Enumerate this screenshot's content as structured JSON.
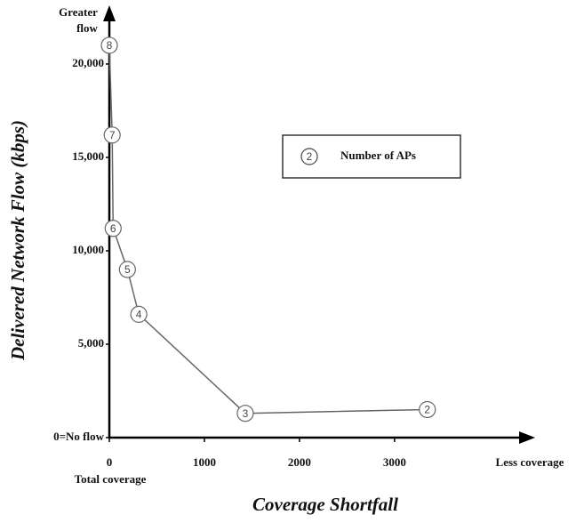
{
  "chart_data": {
    "type": "line",
    "x_title": "Coverage Shortfall",
    "y_title": "Delivered Network Flow (kbps)",
    "y_end_label": [
      "Greater",
      "flow"
    ],
    "x_end_label": "Less coverage",
    "x_origin_label": "Total coverage",
    "x": [
      0,
      30,
      40,
      190,
      310,
      1430,
      3345
    ],
    "series": [
      {
        "color": "#666666",
        "values": [
          21000,
          16200,
          11200,
          9000,
          6600,
          1300,
          1500
        ],
        "point_labels": [
          "8",
          "7",
          "6",
          "5",
          "4",
          "3",
          "2"
        ]
      }
    ],
    "legend": {
      "symbol": "2",
      "label": "Number of APs"
    },
    "xlim": [
      0,
      4460
    ],
    "ylim": [
      0,
      22950
    ],
    "xticks": [
      0,
      1000,
      2000,
      3000
    ],
    "yticks": [
      {
        "value": 0,
        "label": "0=No flow"
      },
      {
        "value": 5000,
        "label": "5,000"
      },
      {
        "value": 10000,
        "label": "10,000"
      },
      {
        "value": 15000,
        "label": "15,000"
      },
      {
        "value": 20000,
        "label": "20,000"
      }
    ]
  }
}
